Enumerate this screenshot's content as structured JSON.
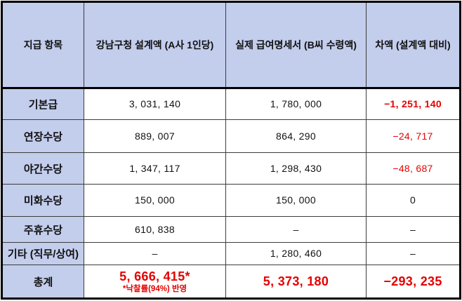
{
  "table": {
    "colors": {
      "header_bg": "#c3cdec",
      "negative": "#e60000",
      "border_heavy": "#000000",
      "border_thin": "#3c3c3c"
    },
    "columns": [
      {
        "label": "지급 항목"
      },
      {
        "label": "강남구청 설계액 (A사 1인당)"
      },
      {
        "label": "실제 급여명세서 (B씨 수령액)"
      },
      {
        "label": "차액 (설계액 대비)"
      }
    ],
    "rows": [
      {
        "label": "기본급",
        "cells": [
          {
            "text": "3, 031, 140"
          },
          {
            "text": "1, 780, 000"
          },
          {
            "text": "−1, 251, 140",
            "negative": true,
            "emphasis": true
          }
        ]
      },
      {
        "label": "연장수당",
        "cells": [
          {
            "text": "889, 007"
          },
          {
            "text": "864, 290"
          },
          {
            "text": "−24, 717",
            "negative": true
          }
        ]
      },
      {
        "label": "야간수당",
        "cells": [
          {
            "text": "1, 347, 117"
          },
          {
            "text": "1, 298, 430"
          },
          {
            "text": "−48, 687",
            "negative": true
          }
        ]
      },
      {
        "label": "미화수당",
        "cells": [
          {
            "text": "150, 000"
          },
          {
            "text": "150, 000"
          },
          {
            "text": "0"
          }
        ]
      },
      {
        "label": "주휴수당",
        "cells": [
          {
            "text": "610, 838"
          },
          {
            "text": "–"
          },
          {
            "text": "–"
          }
        ]
      },
      {
        "label": "기타 (직무/상여)",
        "cells": [
          {
            "text": "–"
          },
          {
            "text": "1, 280, 460"
          },
          {
            "text": "–"
          }
        ]
      },
      {
        "label": "총계",
        "total": true,
        "cells": [
          {
            "text": "5, 666, 415*",
            "note": "*낙찰률(94%) 반영",
            "negative": true,
            "emphasis": true
          },
          {
            "text": "5, 373, 180",
            "negative": true,
            "emphasis": true
          },
          {
            "text": "−293, 235",
            "negative": true,
            "emphasis": true
          }
        ]
      }
    ]
  },
  "chart_data": {
    "type": "table",
    "title": "",
    "columns": [
      "지급 항목",
      "강남구청 설계액 (A사 1인당)",
      "실제 급여명세서 (B씨 수령액)",
      "차액 (설계액 대비)"
    ],
    "rows": [
      [
        "기본급",
        3031140,
        1780000,
        -1251140
      ],
      [
        "연장수당",
        889007,
        864290,
        -24717
      ],
      [
        "야간수당",
        1347117,
        1298430,
        -48687
      ],
      [
        "미화수당",
        150000,
        150000,
        0
      ],
      [
        "주휴수당",
        610838,
        null,
        null
      ],
      [
        "기타 (직무/상여)",
        null,
        1280460,
        null
      ],
      [
        "총계",
        5666415,
        5373180,
        -293235
      ]
    ],
    "annotations": [
      "*낙찰률(94%) 반영"
    ],
    "layout": {
      "negative_values_color": "#e60000",
      "header_bg": "#c3cdec",
      "grid": true
    }
  }
}
